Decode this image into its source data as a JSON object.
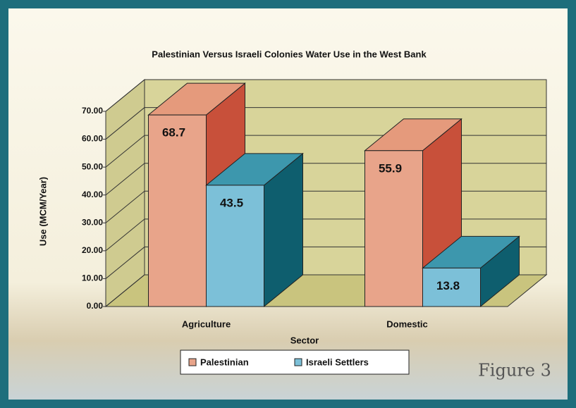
{
  "chart_data": {
    "type": "bar3d",
    "title": "Palestinian Versus Israeli Colonies Water Use in the West Bank",
    "x_label": "Sector",
    "y_label": "Use (MCM/Year)",
    "categories": [
      "Agriculture",
      "Domestic"
    ],
    "series": [
      {
        "name": "Palestinian",
        "color": "#e8a48a",
        "values": [
          68.7,
          55.9
        ]
      },
      {
        "name": "Israeli Settlers",
        "color": "#7cc0d8",
        "values": [
          43.5,
          13.8
        ]
      }
    ],
    "ylim": [
      0,
      70
    ],
    "yticks": [
      {
        "value": 0,
        "label": "0.00"
      },
      {
        "value": 10,
        "label": "10.00"
      },
      {
        "value": 20,
        "label": "20.00"
      },
      {
        "value": 30,
        "label": "30.00"
      },
      {
        "value": 40,
        "label": "40.00"
      },
      {
        "value": 50,
        "label": "50.00"
      },
      {
        "value": 60,
        "label": "60.00"
      },
      {
        "value": 70,
        "label": "70.00"
      }
    ],
    "grid": true,
    "figure_label": "Figure 3"
  }
}
